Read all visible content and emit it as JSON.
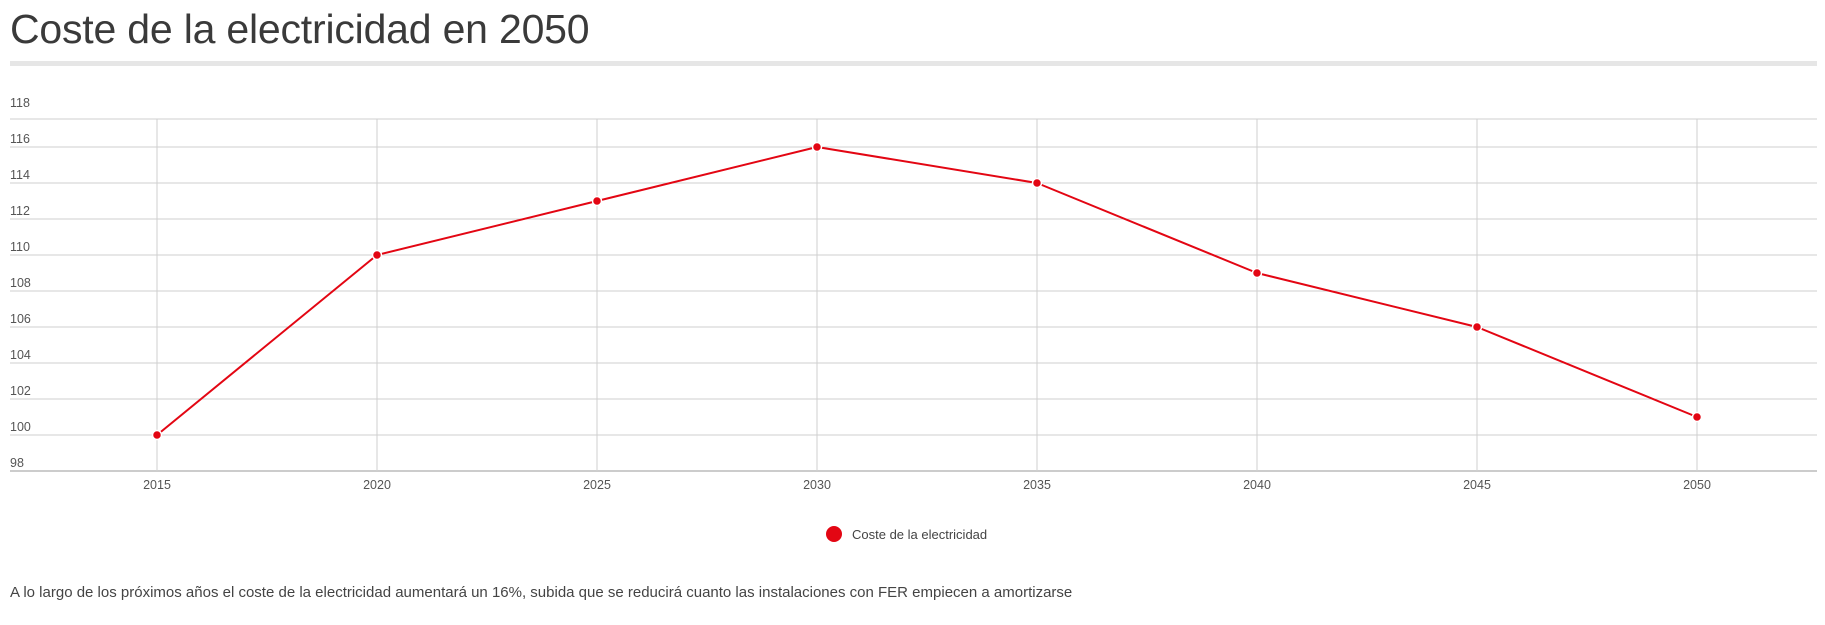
{
  "header": {
    "title": "Coste de la electricidad en 2050"
  },
  "chart_data": {
    "type": "line",
    "x": [
      "2015",
      "2020",
      "2025",
      "2030",
      "2035",
      "2040",
      "2045",
      "2050"
    ],
    "series": [
      {
        "name": "Coste de la electricidad",
        "values": [
          100,
          110,
          113,
          116,
          114,
          109,
          106,
          101
        ],
        "color": "#e30613"
      }
    ],
    "y_ticks": [
      "98",
      "100",
      "102",
      "104",
      "106",
      "108",
      "110",
      "112",
      "114",
      "116",
      "118"
    ],
    "ylim": [
      98,
      118
    ],
    "grid": true,
    "legend_position": "bottom-center",
    "title": "",
    "xlabel": "",
    "ylabel": ""
  },
  "legend": {
    "label": "Coste de la electricidad",
    "color": "#e30613"
  },
  "caption": "A lo largo de los próximos años el coste de la electricidad aumentará un 16%, subida que se reducirá cuanto las instalaciones con FER empiecen a amortizarse"
}
